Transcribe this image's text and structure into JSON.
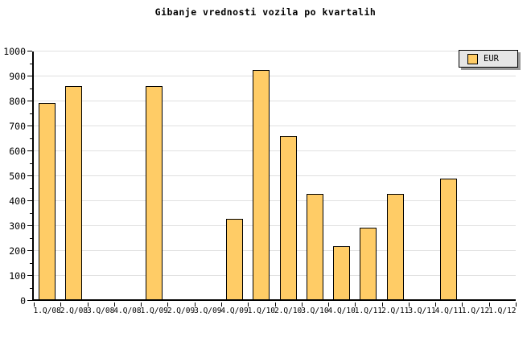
{
  "title": "Gibanje vrednosti vozila po kvartalih",
  "legend": {
    "label": "EUR"
  },
  "chart_data": {
    "type": "bar",
    "title": "Gibanje vrednosti vozila po kvartalih",
    "categories": [
      "1.Q/08",
      "2.Q/08",
      "3.Q/08",
      "4.Q/08",
      "1.Q/09",
      "2.Q/09",
      "3.Q/09",
      "4.Q/09",
      "1.Q/10",
      "2.Q/10",
      "3.Q/10",
      "4.Q/10",
      "1.Q/11",
      "2.Q/11",
      "3.Q/11",
      "4.Q/11",
      "1.Q/12",
      "1.Q/12"
    ],
    "series": [
      {
        "name": "EUR",
        "values": [
          795,
          860,
          0,
          0,
          860,
          0,
          0,
          330,
          925,
          660,
          430,
          220,
          295,
          430,
          0,
          490,
          0,
          0
        ]
      }
    ],
    "xlabel": "",
    "ylabel": "",
    "ylim": [
      0,
      1000
    ],
    "ytick_major_step": 100,
    "ytick_minor_step": 50,
    "grid": true,
    "legend_position": "top-right",
    "colors": {
      "bar_fill": "#ffcc66",
      "bar_border": "#000000",
      "gridline": "#e0e0e0",
      "axis": "#000000",
      "text": "#000000",
      "legend_bg": "#e6e6e6",
      "legend_shadow": "#999999",
      "background": "#ffffff"
    }
  }
}
